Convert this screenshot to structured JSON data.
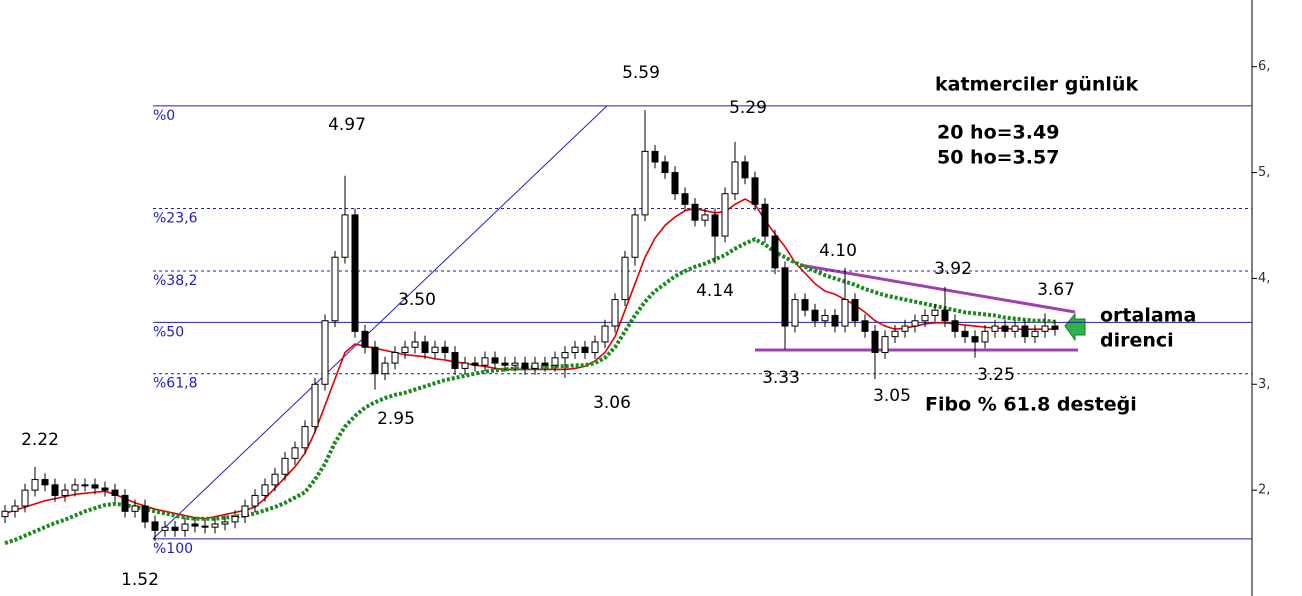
{
  "chart_data": {
    "type": "candlestick",
    "title": "katmerciler günlük",
    "notes": [
      "20 ho=3.49",
      "50 ho=3.57",
      "ortalama",
      "direnci",
      "Fibo % 61.8 desteği"
    ],
    "annotations": [
      "2.22",
      "1.52",
      "4.97",
      "3.50",
      "2.95",
      "5.59",
      "3.06",
      "5.29",
      "4.14",
      "4.10",
      "3.33",
      "3.92",
      "3.05",
      "3.25",
      "3.67"
    ],
    "ylim": [
      1.0,
      6.63
    ],
    "yticks": [
      {
        "value": 2,
        "label": "2,"
      },
      {
        "value": 3,
        "label": "3,"
      },
      {
        "value": 4,
        "label": "4,"
      },
      {
        "value": 5,
        "label": "5,"
      },
      {
        "value": 6,
        "label": "6,"
      }
    ],
    "fib_levels": [
      {
        "value": 5.63,
        "label": "%0"
      },
      {
        "value": 4.66,
        "label": "%23,6"
      },
      {
        "value": 4.07,
        "label": "%38,2"
      },
      {
        "value": 3.585,
        "label": "%50"
      },
      {
        "value": 3.1,
        "label": "%61,8"
      },
      {
        "value": 1.54,
        "label": "%100"
      }
    ],
    "open": [
      1.75,
      1.8,
      1.85,
      2.0,
      2.1,
      2.05,
      1.95,
      2.0,
      2.05,
      2.05,
      2.02,
      2.0,
      1.95,
      1.8,
      1.85,
      1.7,
      1.62,
      1.65,
      1.62,
      1.68,
      1.66,
      1.65,
      1.68,
      1.7,
      1.75,
      1.85,
      1.95,
      2.05,
      2.15,
      2.3,
      2.4,
      2.6,
      3.0,
      3.6,
      4.2,
      4.6,
      3.5,
      3.35,
      3.1,
      3.2,
      3.3,
      3.35,
      3.4,
      3.3,
      3.35,
      3.3,
      3.15,
      3.2,
      3.18,
      3.25,
      3.2,
      3.18,
      3.2,
      3.15,
      3.2,
      3.18,
      3.25,
      3.3,
      3.35,
      3.3,
      3.4,
      3.55,
      3.8,
      4.2,
      4.6,
      5.2,
      5.1,
      5.0,
      4.8,
      4.7,
      4.55,
      4.6,
      4.4,
      4.8,
      5.1,
      4.95,
      4.7,
      4.4,
      4.1,
      3.55,
      3.8,
      3.7,
      3.6,
      3.65,
      3.55,
      3.8,
      3.6,
      3.5,
      3.3,
      3.45,
      3.5,
      3.55,
      3.6,
      3.65,
      3.7,
      3.6,
      3.5,
      3.45,
      3.4,
      3.5,
      3.55,
      3.5,
      3.55,
      3.45,
      3.5,
      3.55
    ],
    "high": [
      1.86,
      1.91,
      2.06,
      2.22,
      2.16,
      2.11,
      2.06,
      2.11,
      2.11,
      2.11,
      2.08,
      2.06,
      2.01,
      1.91,
      1.91,
      1.76,
      1.71,
      1.71,
      1.74,
      1.74,
      1.72,
      1.74,
      1.76,
      1.81,
      1.91,
      2.01,
      2.11,
      2.21,
      2.36,
      2.46,
      2.66,
      3.06,
      3.66,
      4.26,
      4.97,
      4.66,
      3.56,
      3.41,
      3.26,
      3.36,
      3.41,
      3.5,
      3.46,
      3.41,
      3.41,
      3.36,
      3.26,
      3.26,
      3.31,
      3.31,
      3.26,
      3.26,
      3.26,
      3.26,
      3.26,
      3.31,
      3.36,
      3.41,
      3.41,
      3.46,
      3.61,
      3.86,
      4.26,
      4.66,
      5.59,
      5.26,
      5.16,
      5.06,
      4.86,
      4.76,
      4.66,
      4.66,
      4.86,
      5.29,
      5.16,
      5.01,
      4.76,
      4.46,
      4.16,
      3.86,
      3.86,
      3.76,
      3.71,
      3.71,
      4.1,
      3.86,
      3.66,
      3.56,
      3.51,
      3.56,
      3.61,
      3.66,
      3.71,
      3.76,
      3.92,
      3.66,
      3.56,
      3.51,
      3.56,
      3.61,
      3.61,
      3.61,
      3.61,
      3.56,
      3.67,
      3.61
    ],
    "low": [
      1.69,
      1.74,
      1.79,
      1.94,
      1.99,
      1.89,
      1.89,
      1.94,
      1.99,
      1.96,
      1.94,
      1.89,
      1.74,
      1.74,
      1.64,
      1.52,
      1.56,
      1.56,
      1.56,
      1.6,
      1.59,
      1.59,
      1.62,
      1.64,
      1.69,
      1.79,
      1.89,
      1.99,
      2.09,
      2.24,
      2.34,
      2.54,
      2.94,
      3.54,
      4.14,
      3.44,
      3.29,
      2.95,
      3.04,
      3.14,
      3.24,
      3.29,
      3.24,
      3.24,
      3.24,
      3.09,
      3.09,
      3.12,
      3.12,
      3.14,
      3.12,
      3.12,
      3.09,
      3.09,
      3.12,
      3.12,
      3.06,
      3.24,
      3.24,
      3.24,
      3.34,
      3.49,
      3.74,
      4.12,
      4.54,
      5.04,
      4.94,
      4.74,
      4.64,
      4.49,
      4.49,
      4.14,
      4.34,
      4.74,
      4.89,
      4.64,
      4.34,
      4.04,
      3.33,
      3.49,
      3.64,
      3.54,
      3.54,
      3.49,
      3.49,
      3.54,
      3.44,
      3.05,
      3.24,
      3.39,
      3.44,
      3.49,
      3.54,
      3.59,
      3.54,
      3.44,
      3.39,
      3.25,
      3.34,
      3.44,
      3.44,
      3.44,
      3.39,
      3.39,
      3.44,
      3.46
    ],
    "close": [
      1.8,
      1.85,
      2.0,
      2.1,
      2.05,
      1.95,
      2.0,
      2.05,
      2.05,
      2.02,
      2.0,
      1.95,
      1.8,
      1.85,
      1.7,
      1.62,
      1.65,
      1.62,
      1.68,
      1.66,
      1.65,
      1.68,
      1.7,
      1.75,
      1.85,
      1.95,
      2.05,
      2.15,
      2.3,
      2.4,
      2.6,
      3.0,
      3.6,
      4.2,
      4.6,
      3.5,
      3.35,
      3.1,
      3.2,
      3.3,
      3.35,
      3.4,
      3.3,
      3.35,
      3.3,
      3.15,
      3.2,
      3.18,
      3.25,
      3.2,
      3.18,
      3.2,
      3.15,
      3.2,
      3.18,
      3.25,
      3.3,
      3.35,
      3.3,
      3.4,
      3.55,
      3.8,
      4.2,
      4.6,
      5.2,
      5.1,
      5.0,
      4.8,
      4.7,
      4.55,
      4.6,
      4.4,
      4.8,
      5.1,
      4.95,
      4.7,
      4.4,
      4.1,
      3.55,
      3.8,
      3.7,
      3.6,
      3.65,
      3.55,
      3.8,
      3.6,
      3.5,
      3.3,
      3.45,
      3.5,
      3.55,
      3.6,
      3.65,
      3.7,
      3.6,
      3.5,
      3.45,
      3.4,
      3.5,
      3.55,
      3.5,
      3.55,
      3.45,
      3.5,
      3.55,
      3.52
    ],
    "moving_averages": [
      {
        "color": "#e00000",
        "style": "solid",
        "values": [
          1.78,
          1.81,
          1.84,
          1.87,
          1.9,
          1.92,
          1.94,
          1.96,
          1.97,
          1.98,
          1.99,
          1.96,
          1.92,
          1.88,
          1.85,
          1.82,
          1.8,
          1.78,
          1.76,
          1.74,
          1.73,
          1.75,
          1.77,
          1.79,
          1.81,
          1.84,
          1.92,
          2.02,
          2.12,
          2.22,
          2.35,
          2.55,
          2.8,
          3.05,
          3.3,
          3.38,
          3.36,
          3.34,
          3.32,
          3.3,
          3.28,
          3.27,
          3.26,
          3.24,
          3.23,
          3.21,
          3.2,
          3.18,
          3.17,
          3.15,
          3.14,
          3.14,
          3.14,
          3.14,
          3.14,
          3.14,
          3.14,
          3.15,
          3.17,
          3.22,
          3.3,
          3.45,
          3.7,
          3.95,
          4.2,
          4.38,
          4.5,
          4.58,
          4.64,
          4.66,
          4.64,
          4.62,
          4.63,
          4.7,
          4.75,
          4.7,
          4.55,
          4.42,
          4.3,
          4.15,
          4.05,
          3.95,
          3.88,
          3.85,
          3.8,
          3.75,
          3.68,
          3.6,
          3.55,
          3.52,
          3.53,
          3.55,
          3.57,
          3.58,
          3.58,
          3.57,
          3.56,
          3.55,
          3.54,
          3.53,
          3.53,
          3.52,
          3.52,
          3.52,
          3.52,
          3.52
        ]
      },
      {
        "color": "#1a8a1a",
        "style": "dotted",
        "values": [
          1.5,
          1.53,
          1.57,
          1.61,
          1.65,
          1.69,
          1.72,
          1.76,
          1.8,
          1.83,
          1.86,
          1.87,
          1.86,
          1.84,
          1.82,
          1.8,
          1.78,
          1.76,
          1.74,
          1.73,
          1.73,
          1.73,
          1.74,
          1.75,
          1.76,
          1.78,
          1.81,
          1.84,
          1.88,
          1.93,
          1.98,
          2.1,
          2.25,
          2.45,
          2.6,
          2.7,
          2.78,
          2.83,
          2.87,
          2.9,
          2.92,
          2.95,
          2.98,
          3.01,
          3.04,
          3.06,
          3.08,
          3.1,
          3.12,
          3.13,
          3.14,
          3.15,
          3.15,
          3.16,
          3.16,
          3.17,
          3.17,
          3.18,
          3.18,
          3.2,
          3.25,
          3.35,
          3.5,
          3.65,
          3.78,
          3.88,
          3.95,
          4.02,
          4.07,
          4.11,
          4.14,
          4.18,
          4.22,
          4.28,
          4.33,
          4.37,
          4.32,
          4.25,
          4.2,
          4.15,
          4.11,
          4.07,
          4.03,
          4.0,
          3.97,
          3.94,
          3.9,
          3.87,
          3.84,
          3.82,
          3.8,
          3.78,
          3.76,
          3.74,
          3.72,
          3.7,
          3.68,
          3.67,
          3.66,
          3.65,
          3.63,
          3.62,
          3.61,
          3.6,
          3.6,
          3.59
        ]
      }
    ]
  }
}
